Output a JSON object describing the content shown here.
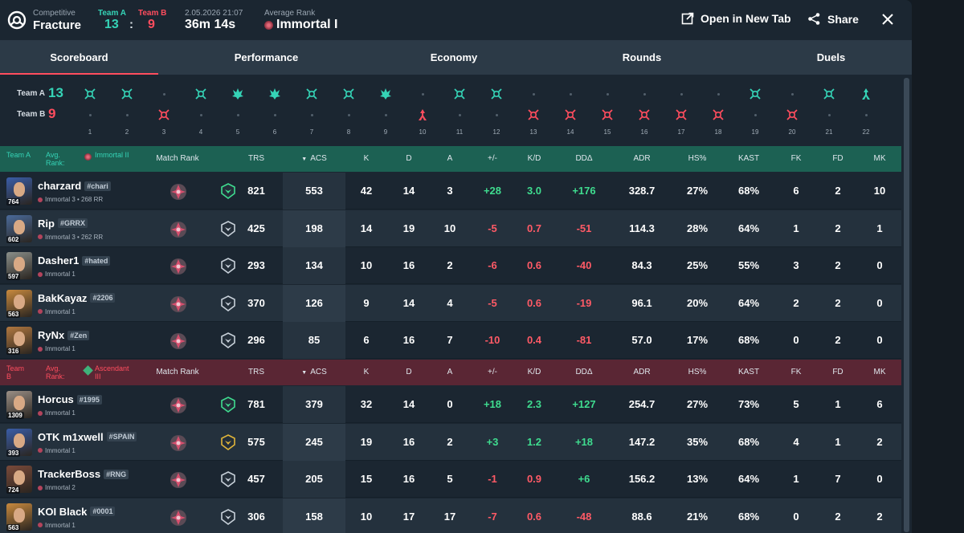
{
  "header": {
    "mode": "Competitive",
    "map": "Fracture",
    "team_a_label": "Team A",
    "team_b_label": "Team B",
    "team_a_score": "13",
    "team_b_score": "9",
    "score_separator": ":",
    "date": "2.05.2026 21:07",
    "duration": "36m 14s",
    "avg_rank_label": "Average Rank",
    "avg_rank": "Immortal I",
    "open_new_tab": "Open in New Tab",
    "share": "Share"
  },
  "tabs": [
    "Scoreboard",
    "Performance",
    "Economy",
    "Rounds",
    "Duels"
  ],
  "rounds": {
    "team_a_label": "Team A",
    "team_b_label": "Team B",
    "team_a_score": "13",
    "team_b_score": "9",
    "numbers": [
      "1",
      "2",
      "3",
      "4",
      "5",
      "6",
      "7",
      "8",
      "9",
      "10",
      "11",
      "12",
      "13",
      "14",
      "15",
      "16",
      "17",
      "18",
      "19",
      "20",
      "21",
      "22"
    ],
    "results": [
      {
        "winner": "A",
        "type": "elim"
      },
      {
        "winner": "A",
        "type": "elim"
      },
      {
        "winner": "B",
        "type": "elim"
      },
      {
        "winner": "A",
        "type": "elim"
      },
      {
        "winner": "A",
        "type": "detonate"
      },
      {
        "winner": "A",
        "type": "detonate"
      },
      {
        "winner": "A",
        "type": "elim"
      },
      {
        "winner": "A",
        "type": "elim"
      },
      {
        "winner": "A",
        "type": "detonate"
      },
      {
        "winner": "B",
        "type": "defuse"
      },
      {
        "winner": "A",
        "type": "elim"
      },
      {
        "winner": "A",
        "type": "elim"
      },
      {
        "winner": "B",
        "type": "elim"
      },
      {
        "winner": "B",
        "type": "elim"
      },
      {
        "winner": "B",
        "type": "elim"
      },
      {
        "winner": "B",
        "type": "elim"
      },
      {
        "winner": "B",
        "type": "elim"
      },
      {
        "winner": "B",
        "type": "elim"
      },
      {
        "winner": "A",
        "type": "elim"
      },
      {
        "winner": "B",
        "type": "elim"
      },
      {
        "winner": "A",
        "type": "elim"
      },
      {
        "winner": "A",
        "type": "defuse"
      }
    ]
  },
  "columns": [
    "Match Rank",
    "TRS",
    "ACS",
    "K",
    "D",
    "A",
    "+/-",
    "K/D",
    "DDΔ",
    "ADR",
    "HS%",
    "KAST",
    "FK",
    "FD",
    "MK"
  ],
  "team_a": {
    "label": "Team A",
    "avg_label": "Avg. Rank:",
    "avg_rank": "Immortal II",
    "players": [
      {
        "name": "charzard",
        "tag": "#chari",
        "rank": "Immortal 3 • 268 RR",
        "level": "764",
        "trs": "821",
        "acs": "553",
        "k": "42",
        "d": "14",
        "a": "3",
        "pm": "+28",
        "kd": "3.0",
        "dd": "+176",
        "adr": "328.7",
        "hs": "27%",
        "kast": "68%",
        "fk": "6",
        "fd": "2",
        "mk": "10",
        "color": "#3a5da8",
        "trs_color": "#3fdc8f"
      },
      {
        "name": "Rip",
        "tag": "#GRRX",
        "rank": "Immortal 3 • 262 RR",
        "level": "602",
        "trs": "425",
        "acs": "198",
        "k": "14",
        "d": "19",
        "a": "10",
        "pm": "-5",
        "kd": "0.7",
        "dd": "-51",
        "adr": "114.3",
        "hs": "28%",
        "kast": "64%",
        "fk": "1",
        "fd": "2",
        "mk": "1",
        "color": "#4a6a9a",
        "trs_color": "#c7d0d9"
      },
      {
        "name": "Dasher1",
        "tag": "#hated",
        "rank": "Immortal 1",
        "level": "597",
        "trs": "293",
        "acs": "134",
        "k": "10",
        "d": "16",
        "a": "2",
        "pm": "-6",
        "kd": "0.6",
        "dd": "-40",
        "adr": "84.3",
        "hs": "25%",
        "kast": "55%",
        "fk": "3",
        "fd": "2",
        "mk": "0",
        "color": "#8a8f8a",
        "trs_color": "#c7d0d9"
      },
      {
        "name": "BakKayaz",
        "tag": "#2206",
        "rank": "Immortal 1",
        "level": "563",
        "trs": "370",
        "acs": "126",
        "k": "9",
        "d": "14",
        "a": "4",
        "pm": "-5",
        "kd": "0.6",
        "dd": "-19",
        "adr": "96.1",
        "hs": "20%",
        "kast": "64%",
        "fk": "2",
        "fd": "2",
        "mk": "0",
        "color": "#c98a3e",
        "trs_color": "#c7d0d9"
      },
      {
        "name": "RyNx",
        "tag": "#Zen",
        "rank": "Immortal 1",
        "level": "316",
        "trs": "296",
        "acs": "85",
        "k": "6",
        "d": "16",
        "a": "7",
        "pm": "-10",
        "kd": "0.4",
        "dd": "-81",
        "adr": "57.0",
        "hs": "17%",
        "kast": "68%",
        "fk": "0",
        "fd": "2",
        "mk": "0",
        "color": "#b27840",
        "trs_color": "#c7d0d9"
      }
    ]
  },
  "team_b": {
    "label": "Team B",
    "avg_label": "Avg. Rank:",
    "avg_rank": "Ascendant III",
    "players": [
      {
        "name": "Horcus",
        "tag": "#1995",
        "rank": "Immortal 1",
        "level": "1309",
        "trs": "781",
        "acs": "379",
        "k": "32",
        "d": "14",
        "a": "0",
        "pm": "+18",
        "kd": "2.3",
        "dd": "+127",
        "adr": "254.7",
        "hs": "27%",
        "kast": "73%",
        "fk": "5",
        "fd": "1",
        "mk": "6",
        "color": "#9a8f86",
        "trs_color": "#3fdc8f"
      },
      {
        "name": "OTK m1xwell",
        "tag": "#SPAIN",
        "rank": "Immortal 1",
        "level": "393",
        "trs": "575",
        "acs": "245",
        "k": "19",
        "d": "16",
        "a": "2",
        "pm": "+3",
        "kd": "1.2",
        "dd": "+18",
        "adr": "147.2",
        "hs": "35%",
        "kast": "68%",
        "fk": "4",
        "fd": "1",
        "mk": "2",
        "color": "#3a5da8",
        "trs_color": "#e0b53a"
      },
      {
        "name": "TrackerBoss",
        "tag": "#RNG",
        "rank": "Immortal 2",
        "level": "724",
        "trs": "457",
        "acs": "205",
        "k": "15",
        "d": "16",
        "a": "5",
        "pm": "-1",
        "kd": "0.9",
        "dd": "+6",
        "adr": "156.2",
        "hs": "13%",
        "kast": "64%",
        "fk": "1",
        "fd": "7",
        "mk": "0",
        "color": "#7a4a3a",
        "trs_color": "#c7d0d9"
      },
      {
        "name": "KOI Black",
        "tag": "#0001",
        "rank": "Immortal 1",
        "level": "563",
        "trs": "306",
        "acs": "158",
        "k": "10",
        "d": "17",
        "a": "17",
        "pm": "-7",
        "kd": "0.6",
        "dd": "-48",
        "adr": "88.6",
        "hs": "21%",
        "kast": "68%",
        "fk": "0",
        "fd": "2",
        "mk": "2",
        "color": "#c98a3e",
        "trs_color": "#c7d0d9"
      }
    ]
  },
  "colors": {
    "team_a": "#35d3b6",
    "team_b": "#ff4d5e",
    "positive": "#3fdc8f",
    "negative": "#ff5a66",
    "accent": "#ff4d5e"
  }
}
